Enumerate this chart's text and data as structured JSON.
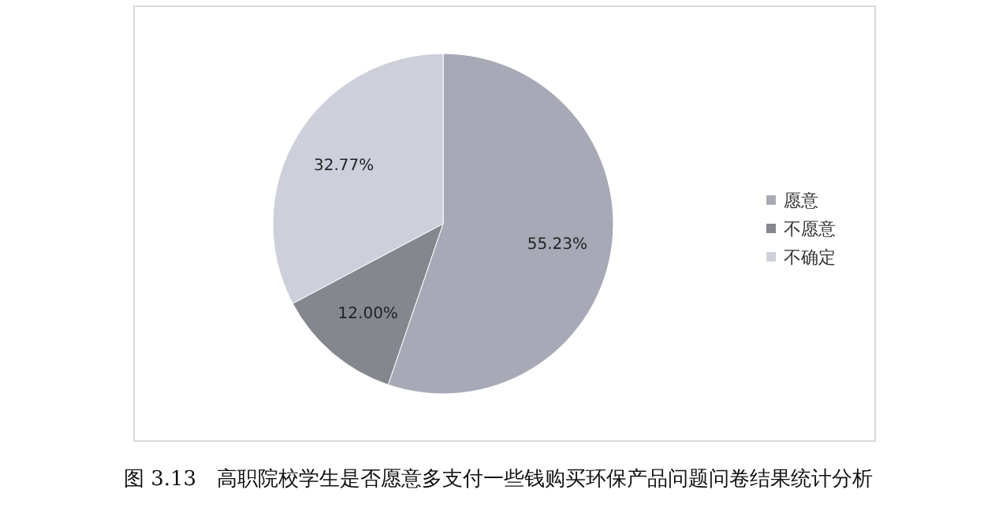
{
  "chart_data": {
    "type": "pie",
    "categories": [
      "愿意",
      "不愿意",
      "不确定"
    ],
    "values": [
      55.23,
      12.0,
      32.77
    ],
    "colors": [
      "#a7a9b6",
      "#85878f",
      "#cdcfda"
    ],
    "value_labels": [
      "55.23%",
      "12.00%",
      "32.77%"
    ],
    "legend": "right",
    "annotations": [
      "图 3.13　高职院校学生是否愿意多支付一些钱购买环保产品问题问卷结果统计分析"
    ]
  }
}
